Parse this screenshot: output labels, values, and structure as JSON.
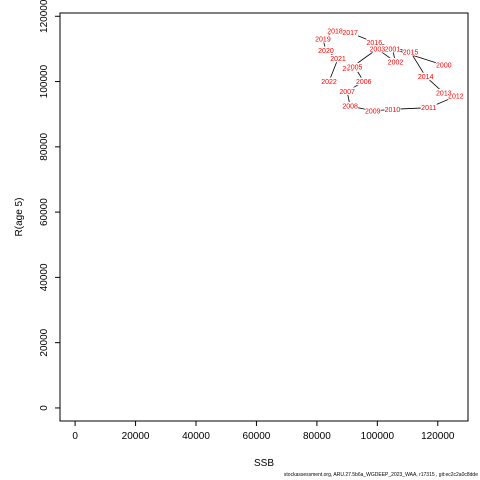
{
  "chart_data": {
    "type": "scatter",
    "xlabel": "SSB",
    "ylabel": "R(age 5)",
    "xlim": [
      -5000,
      130000
    ],
    "ylim": [
      -4000,
      121000
    ],
    "x_ticks": [
      0,
      20000,
      40000,
      60000,
      80000,
      100000,
      120000
    ],
    "y_ticks": [
      0,
      20000,
      40000,
      60000,
      80000,
      100000,
      120000
    ],
    "grid": false,
    "connected": true,
    "label_color": "#ff0000",
    "line_color": "#000000",
    "points": [
      {
        "label": "2000",
        "x": 122000,
        "y": 105000
      },
      {
        "label": "2001",
        "x": 105000,
        "y": 110000
      },
      {
        "label": "2002",
        "x": 106000,
        "y": 106000
      },
      {
        "label": "2003",
        "x": 100000,
        "y": 110000
      },
      {
        "label": "2004",
        "x": 91000,
        "y": 104000
      },
      {
        "label": "2005",
        "x": 92500,
        "y": 104500
      },
      {
        "label": "2006",
        "x": 95500,
        "y": 100000
      },
      {
        "label": "2007",
        "x": 90000,
        "y": 97000
      },
      {
        "label": "2008",
        "x": 91000,
        "y": 92500
      },
      {
        "label": "2009",
        "x": 98500,
        "y": 91000
      },
      {
        "label": "2010",
        "x": 105000,
        "y": 91500
      },
      {
        "label": "2011",
        "x": 117000,
        "y": 92000
      },
      {
        "label": "2012",
        "x": 126000,
        "y": 95500
      },
      {
        "label": "2013",
        "x": 122000,
        "y": 96500
      },
      {
        "label": "2014",
        "x": 116000,
        "y": 101500
      },
      {
        "label": "2015",
        "x": 111000,
        "y": 109000
      },
      {
        "label": "2016",
        "x": 99000,
        "y": 112000
      },
      {
        "label": "2017",
        "x": 91000,
        "y": 115000
      },
      {
        "label": "2018",
        "x": 86000,
        "y": 115500
      },
      {
        "label": "2019",
        "x": 82000,
        "y": 113000
      },
      {
        "label": "2020",
        "x": 83000,
        "y": 109500
      },
      {
        "label": "2021",
        "x": 87000,
        "y": 107000
      },
      {
        "label": "2022",
        "x": 84000,
        "y": 100000
      }
    ]
  },
  "footer_text": "stockassessment.org, ARU.27.5b6a_WGDEEP_2023_WAA, r17315 , git:ec2c2a0c8dde"
}
